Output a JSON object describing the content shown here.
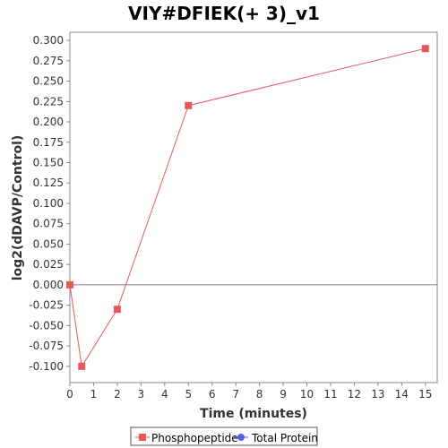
{
  "chart_data": {
    "type": "line",
    "title": "VIY#DFIEK(+ 3)_v1",
    "xlabel": "Time (minutes)",
    "ylabel": "log2(dDAVP/Control)",
    "xlim": [
      0,
      15.5
    ],
    "ylim": [
      -0.12,
      0.31
    ],
    "x_ticks": [
      0,
      1,
      2,
      3,
      4,
      5,
      6,
      7,
      8,
      9,
      10,
      11,
      12,
      13,
      14,
      15
    ],
    "y_ticks": [
      -0.1,
      -0.075,
      -0.05,
      -0.025,
      0.0,
      0.025,
      0.05,
      0.075,
      0.1,
      0.125,
      0.15,
      0.175,
      0.2,
      0.225,
      0.25,
      0.275,
      0.3
    ],
    "y_tick_labels": [
      "-0.100",
      "-0.075",
      "-0.050",
      "-0.025",
      "0.000",
      "0.025",
      "0.050",
      "0.075",
      "0.100",
      "0.125",
      "0.150",
      "0.175",
      "0.200",
      "0.225",
      "0.250",
      "0.275",
      "0.300"
    ],
    "zero_line": true,
    "grid": false,
    "legend_position": "bottom",
    "series": [
      {
        "name": "Phosphopeptide",
        "color": "#e8585a",
        "marker": "square",
        "x": [
          0,
          0.5,
          2,
          5,
          15
        ],
        "values": [
          0.0,
          -0.1,
          -0.03,
          0.22,
          0.29
        ]
      }
    ],
    "legend": [
      {
        "name": "Phosphopeptide",
        "color": "#e8585a",
        "marker": "square"
      },
      {
        "name": "Total Protein",
        "color": "#5060e8",
        "marker": "circle"
      }
    ]
  }
}
